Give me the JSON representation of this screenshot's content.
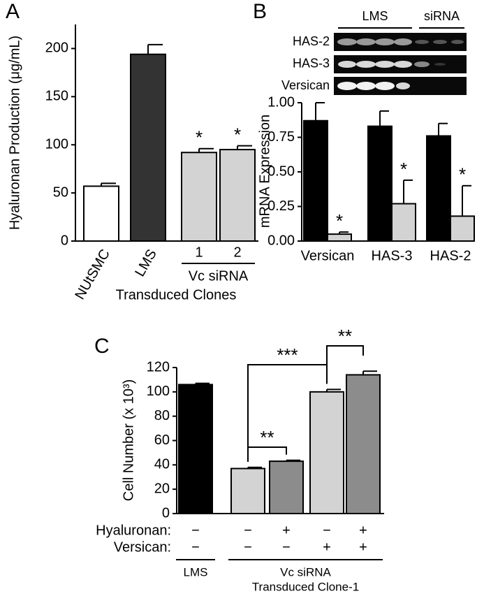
{
  "chart_data": [
    {
      "type": "bar",
      "panel": "A",
      "ylabel": "Hyaluronan Production (μg/mL)",
      "categories": [
        "NUtSMC",
        "LMS",
        "1",
        "2"
      ],
      "values": [
        57,
        194,
        92,
        95
      ],
      "errors": [
        3,
        10,
        4,
        4
      ],
      "colors": [
        "#ffffff",
        "#333333",
        "#d3d3d3",
        "#d3d3d3"
      ],
      "significance": [
        null,
        null,
        "*",
        "*"
      ],
      "groups": [
        {
          "label": "Vc siRNA",
          "from": 2,
          "to": 3
        }
      ],
      "xlabel": "Transduced Clones",
      "ylim": [
        0,
        225
      ],
      "yticks": [
        0,
        50,
        100,
        150,
        200
      ]
    },
    {
      "type": "bar",
      "panel": "B",
      "ylabel": "mRNA Expression",
      "categories": [
        "Versican",
        "HAS-3",
        "HAS-2"
      ],
      "series": [
        {
          "name": "LMS",
          "color": "#000000",
          "values": [
            0.87,
            0.83,
            0.76
          ],
          "errors": [
            0.13,
            0.11,
            0.09
          ],
          "significance": [
            null,
            null,
            null
          ]
        },
        {
          "name": "siRNA",
          "color": "#d3d3d3",
          "values": [
            0.05,
            0.27,
            0.18
          ],
          "errors": [
            0.015,
            0.17,
            0.22
          ],
          "significance": [
            "*",
            "*",
            "*"
          ]
        }
      ],
      "gel": {
        "rows": [
          "HAS-2",
          "HAS-3",
          "Versican"
        ]
      },
      "ylim": [
        0,
        1.0
      ],
      "yticks": [
        {
          "value": 0,
          "label": "0.00"
        },
        0.25,
        {
          "value": 0.5,
          "label": "0.50"
        },
        0.75,
        {
          "value": 1,
          "label": "1.00"
        }
      ]
    },
    {
      "type": "bar",
      "panel": "C",
      "ylabel": "Cell Number (x 10³)",
      "values": [
        106,
        37,
        43,
        100,
        114
      ],
      "errors": [
        1,
        1,
        0.8,
        2,
        3
      ],
      "colors": [
        "#000000",
        "#d3d3d3",
        "#8c8c8c",
        "#d3d3d3",
        "#8c8c8c"
      ],
      "conditions": [
        {
          "name": "Hyaluronan:",
          "signs": [
            "−",
            "−",
            "+",
            "−",
            "+"
          ]
        },
        {
          "name": "Versican:",
          "signs": [
            "−",
            "−",
            "−",
            "+",
            "+"
          ]
        }
      ],
      "comparisons": [
        {
          "bars": [
            1,
            2
          ],
          "label": "**"
        },
        {
          "bars": [
            1,
            3
          ],
          "label": "***"
        },
        {
          "bars": [
            3,
            4
          ],
          "label": "**"
        }
      ],
      "groups": [
        {
          "label": "LMS",
          "from": 0,
          "to": 0
        },
        {
          "label": "Vc siRNA",
          "sublabel": "Transduced Clone-1",
          "from": 1,
          "to": 4
        }
      ],
      "ylim": [
        0,
        120
      ],
      "yticks": [
        0,
        20,
        40,
        60,
        80,
        100,
        120
      ]
    }
  ]
}
